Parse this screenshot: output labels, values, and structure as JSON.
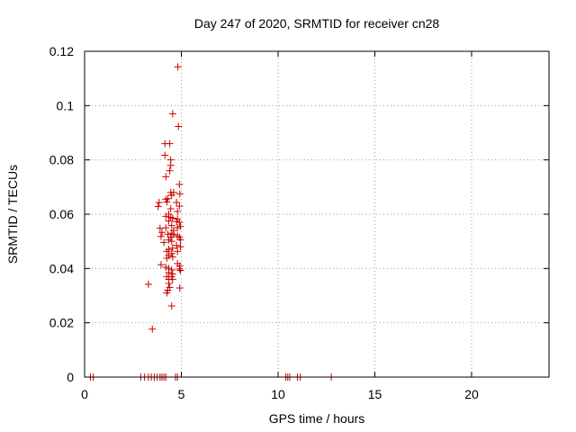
{
  "chart_data": {
    "type": "scatter",
    "title": "Day 247 of 2020, SRMTID for receiver cn28",
    "xlabel": "GPS time / hours",
    "ylabel": "SRMTID / TECUs",
    "xlim": [
      0,
      24
    ],
    "ylim": [
      0,
      0.12
    ],
    "xticks": [
      0,
      5,
      10,
      15,
      20
    ],
    "yticks": [
      0,
      0.02,
      0.04,
      0.06,
      0.08,
      0.1,
      0.12
    ],
    "xtick_labels": [
      "0",
      "5",
      "10",
      "15",
      "20"
    ],
    "ytick_labels": [
      "0",
      "0.02",
      "0.04",
      "0.06",
      "0.08",
      "0.1",
      "0.12"
    ],
    "grid": true,
    "marker": "+",
    "color": "#cc0000",
    "series": [
      {
        "name": "cn28",
        "points": [
          [
            0.3,
            0
          ],
          [
            0.45,
            0
          ],
          [
            2.9,
            0
          ],
          [
            3.1,
            0
          ],
          [
            3.3,
            0
          ],
          [
            3.45,
            0
          ],
          [
            3.6,
            0
          ],
          [
            3.75,
            0
          ],
          [
            3.9,
            0
          ],
          [
            4.0,
            0
          ],
          [
            4.1,
            0
          ],
          [
            4.2,
            0
          ],
          [
            4.7,
            0
          ],
          [
            4.8,
            0
          ],
          [
            10.4,
            0
          ],
          [
            10.5,
            0
          ],
          [
            10.6,
            0
          ],
          [
            11.0,
            0
          ],
          [
            11.15,
            0
          ],
          [
            12.75,
            0
          ],
          [
            3.3,
            0.0342
          ],
          [
            3.5,
            0.0177
          ],
          [
            3.8,
            0.0628
          ],
          [
            3.85,
            0.0643
          ],
          [
            3.9,
            0.0548
          ],
          [
            3.95,
            0.0518
          ],
          [
            3.95,
            0.0414
          ],
          [
            4.0,
            0.0533
          ],
          [
            4.1,
            0.0496
          ],
          [
            4.15,
            0.086
          ],
          [
            4.15,
            0.0817
          ],
          [
            4.2,
            0.0738
          ],
          [
            4.2,
            0.0655
          ],
          [
            4.25,
            0.0645
          ],
          [
            4.2,
            0.0592
          ],
          [
            4.2,
            0.055
          ],
          [
            4.25,
            0.0463
          ],
          [
            4.25,
            0.0438
          ],
          [
            4.2,
            0.0405
          ],
          [
            4.25,
            0.037
          ],
          [
            4.25,
            0.031
          ],
          [
            4.3,
            0.032
          ],
          [
            4.3,
            0.0657
          ],
          [
            4.35,
            0.06
          ],
          [
            4.35,
            0.0575
          ],
          [
            4.3,
            0.0526
          ],
          [
            4.35,
            0.0505
          ],
          [
            4.35,
            0.047
          ],
          [
            4.35,
            0.0448
          ],
          [
            4.35,
            0.04
          ],
          [
            4.35,
            0.0385
          ],
          [
            4.35,
            0.036
          ],
          [
            4.35,
            0.0345
          ],
          [
            4.4,
            0.033
          ],
          [
            4.4,
            0.086
          ],
          [
            4.45,
            0.08
          ],
          [
            4.45,
            0.078
          ],
          [
            4.4,
            0.076
          ],
          [
            4.45,
            0.068
          ],
          [
            4.5,
            0.067
          ],
          [
            4.45,
            0.062
          ],
          [
            4.45,
            0.0588
          ],
          [
            4.5,
            0.0558
          ],
          [
            4.5,
            0.053
          ],
          [
            4.45,
            0.0515
          ],
          [
            4.5,
            0.05
          ],
          [
            4.5,
            0.0455
          ],
          [
            4.55,
            0.0443
          ],
          [
            4.5,
            0.0395
          ],
          [
            4.55,
            0.038
          ],
          [
            4.5,
            0.037
          ],
          [
            4.55,
            0.036
          ],
          [
            4.5,
            0.0262
          ],
          [
            4.55,
            0.097
          ],
          [
            4.6,
            0.068
          ],
          [
            4.55,
            0.0585
          ],
          [
            4.6,
            0.054
          ],
          [
            4.6,
            0.0525
          ],
          [
            4.55,
            0.0475
          ],
          [
            4.75,
            0.0643
          ],
          [
            4.8,
            0.061
          ],
          [
            4.8,
            0.0582
          ],
          [
            4.75,
            0.0573
          ],
          [
            4.8,
            0.055
          ],
          [
            4.8,
            0.052
          ],
          [
            4.75,
            0.0485
          ],
          [
            4.8,
            0.0463
          ],
          [
            4.8,
            0.0418
          ],
          [
            4.82,
            0.1143
          ],
          [
            4.85,
            0.0923
          ],
          [
            4.9,
            0.071
          ],
          [
            4.92,
            0.0675
          ],
          [
            4.9,
            0.063
          ],
          [
            4.9,
            0.057
          ],
          [
            4.95,
            0.0555
          ],
          [
            4.9,
            0.0515
          ],
          [
            4.95,
            0.0505
          ],
          [
            4.95,
            0.048
          ],
          [
            4.92,
            0.041
          ],
          [
            4.9,
            0.0398
          ],
          [
            4.95,
            0.0393
          ],
          [
            4.92,
            0.0328
          ]
        ]
      }
    ]
  }
}
